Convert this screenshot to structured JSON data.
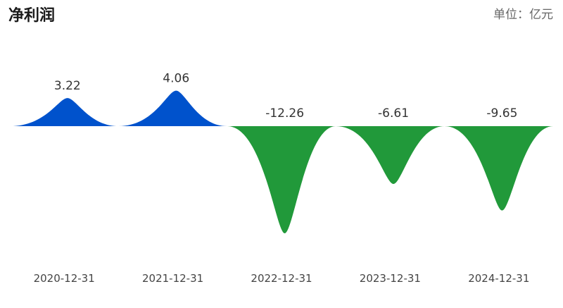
{
  "chart_data": {
    "type": "bar",
    "title": "净利润",
    "unit": "单位：亿元",
    "categories": [
      "2020-12-31",
      "2021-12-31",
      "2022-12-31",
      "2023-12-31",
      "2024-12-31"
    ],
    "values": [
      3.22,
      4.06,
      -12.26,
      -6.61,
      -9.65
    ],
    "value_labels": [
      "3.22",
      "4.06",
      "-12.26",
      "-6.61",
      "-9.65"
    ],
    "colors": {
      "positive": "#0052CC",
      "negative": "#21993A"
    },
    "ylim": [
      -12.26,
      4.06
    ],
    "grid": false,
    "legend": "none"
  }
}
